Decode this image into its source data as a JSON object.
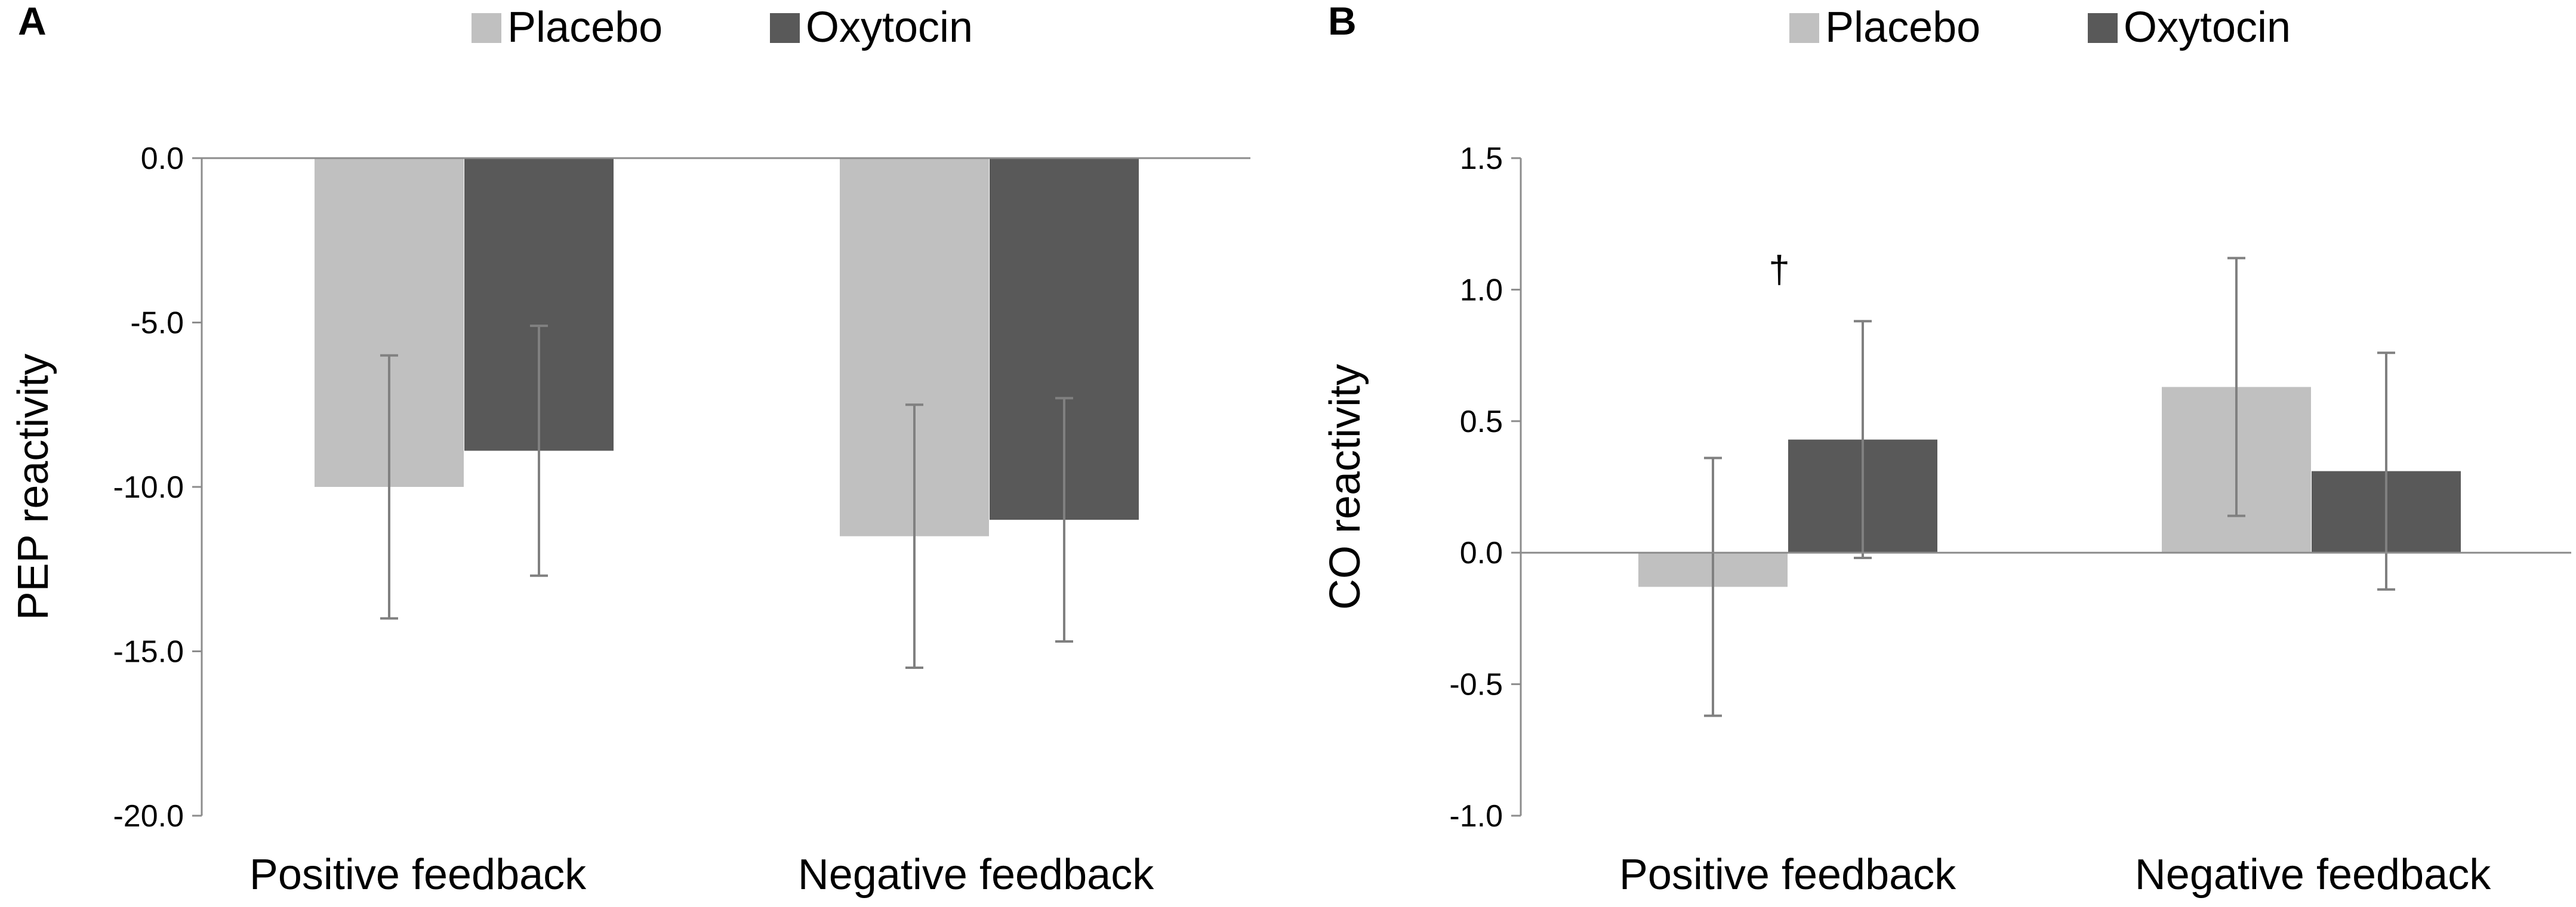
{
  "chart_data": [
    {
      "panel_label": "A",
      "type": "bar",
      "categories": [
        "Positive feedback",
        "Negative feedback"
      ],
      "series": [
        {
          "name": "Placebo",
          "values": [
            -10.0,
            -11.5
          ],
          "error_low": [
            -14.0,
            -15.5
          ],
          "error_high": [
            -6.0,
            -7.5
          ]
        },
        {
          "name": "Oxytocin",
          "values": [
            -8.9,
            -11.0
          ],
          "error_low": [
            -12.7,
            -14.7
          ],
          "error_high": [
            -5.1,
            -7.3
          ]
        }
      ],
      "ylabel": "PEP reactivity",
      "ylim": [
        -20,
        0
      ],
      "yticks": [
        0.0,
        -5.0,
        -10.0,
        -15.0,
        -20.0
      ],
      "ytick_labels": [
        "0.0",
        "-5.0",
        "-10.0",
        "-15.0",
        "-20.0"
      ],
      "legend": [
        "Placebo",
        "Oxytocin"
      ],
      "legend_position": "top",
      "grid": false,
      "annotations": []
    },
    {
      "panel_label": "B",
      "type": "bar",
      "categories": [
        "Positive feedback",
        "Negative feedback"
      ],
      "series": [
        {
          "name": "Placebo",
          "values": [
            -0.13,
            0.63
          ],
          "error_low": [
            -0.62,
            0.14
          ],
          "error_high": [
            0.36,
            1.12
          ]
        },
        {
          "name": "Oxytocin",
          "values": [
            0.43,
            0.31
          ],
          "error_low": [
            -0.02,
            -0.14
          ],
          "error_high": [
            0.88,
            0.76
          ]
        }
      ],
      "ylabel": "CO reactivity",
      "ylim": [
        -1.0,
        1.5
      ],
      "yticks": [
        1.5,
        1.0,
        0.5,
        0.0,
        -0.5,
        -1.0
      ],
      "ytick_labels": [
        "1.5",
        "1.0",
        "0.5",
        "0.0",
        "-0.5",
        "-1.0"
      ],
      "legend": [
        "Placebo",
        "Oxytocin"
      ],
      "legend_position": "top",
      "grid": false,
      "annotations": [
        {
          "text": "†",
          "category_index": 0,
          "series_index": 1
        }
      ]
    }
  ],
  "colors": {
    "placebo": "#c0c0c0",
    "oxytocin": "#595959",
    "axis": "#8c8c8c",
    "text": "#000000",
    "error_bar": "#808080"
  }
}
